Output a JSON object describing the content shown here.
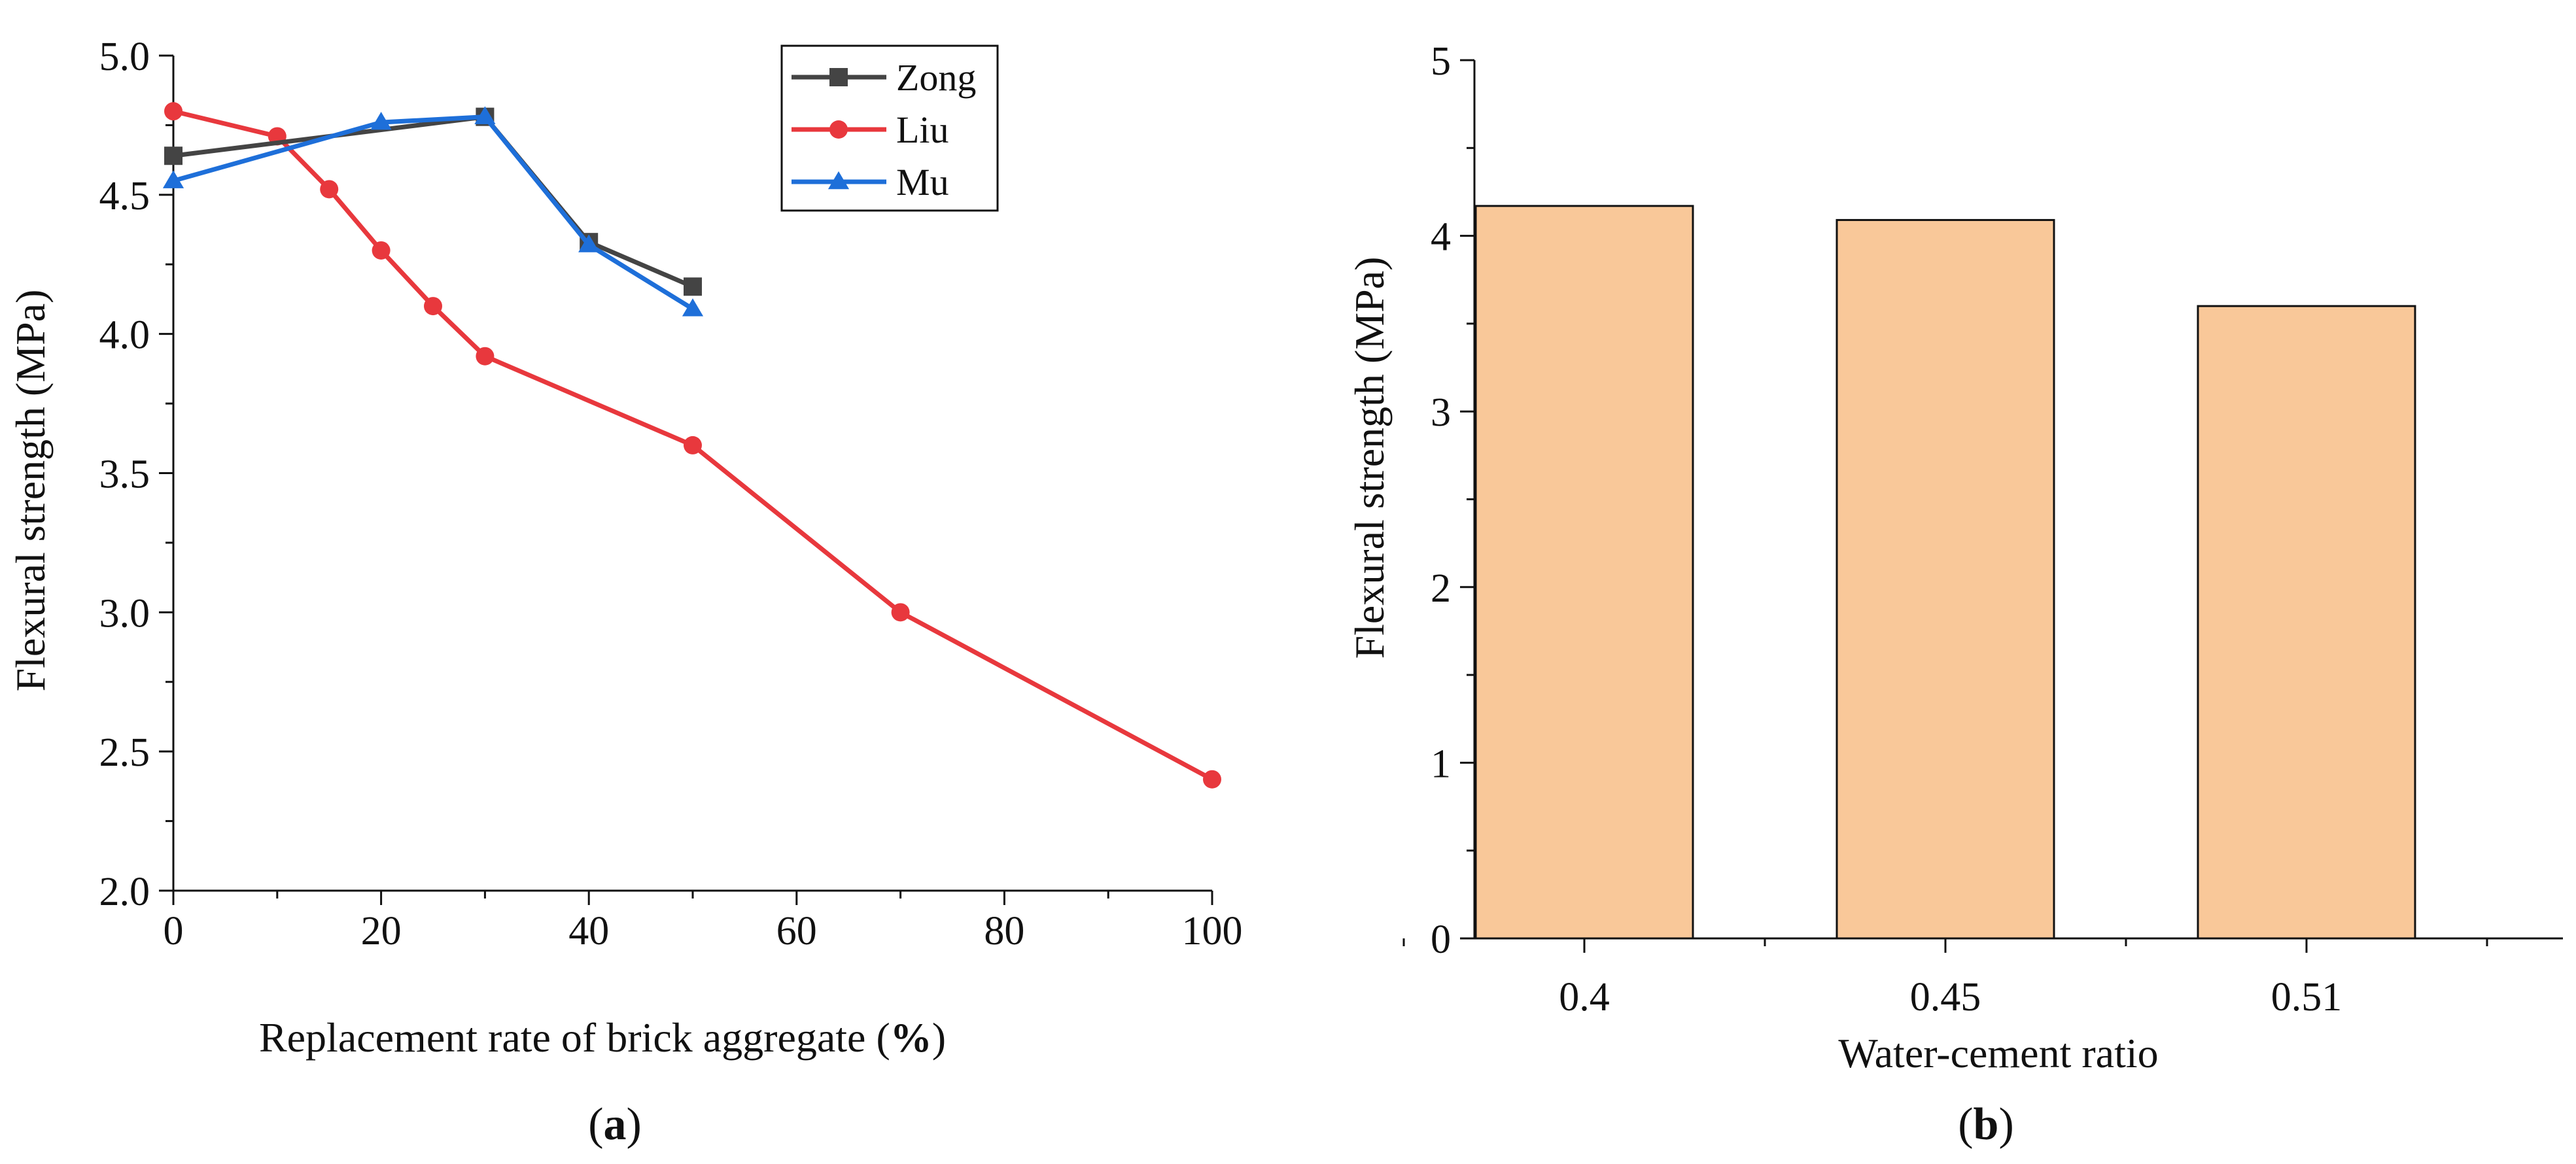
{
  "chart_data": [
    {
      "type": "line",
      "panel_label": "a",
      "xlabel_text": "Replacement rate of brick aggregate (",
      "xlabel_unit": "%",
      "xlabel_close": ")",
      "ylabel": "Flexural strength (MPa)",
      "xlim": [
        0,
        100
      ],
      "ylim": [
        2.0,
        5.0
      ],
      "xticks": [
        0,
        20,
        40,
        60,
        80,
        100
      ],
      "xtick_labels": [
        "0",
        "20",
        "40",
        "60",
        "80",
        "100"
      ],
      "yticks": [
        2.0,
        2.5,
        3.0,
        3.5,
        4.0,
        4.5,
        5.0
      ],
      "ytick_labels": [
        "2.0",
        "2.5",
        "3.0",
        "3.5",
        "4.0",
        "4.5",
        "5.0"
      ],
      "legend_position": "top-right",
      "series": [
        {
          "name": "Zong",
          "marker": "square",
          "color": "#444444",
          "x": [
            0,
            30,
            40,
            50
          ],
          "y": [
            4.64,
            4.78,
            4.33,
            4.17
          ]
        },
        {
          "name": "Liu",
          "marker": "circle",
          "color": "#E8383D",
          "x": [
            0,
            10,
            15,
            20,
            25,
            30,
            50,
            70,
            100
          ],
          "y": [
            4.8,
            4.71,
            4.52,
            4.3,
            4.1,
            3.92,
            3.6,
            3.0,
            2.4
          ]
        },
        {
          "name": "Mu",
          "marker": "triangle",
          "color": "#1E6FD9",
          "x": [
            0,
            20,
            30,
            40,
            50
          ],
          "y": [
            4.55,
            4.76,
            4.78,
            4.32,
            4.09
          ]
        }
      ]
    },
    {
      "type": "bar",
      "panel_label": "b",
      "xlabel": "Water-cement ratio",
      "ylabel": "Flexural strength (MPa)",
      "categories": [
        "0.4",
        "0.45",
        "0.51"
      ],
      "values": [
        4.17,
        4.09,
        3.6
      ],
      "ylim": [
        0,
        5
      ],
      "yticks": [
        0,
        1,
        2,
        3,
        4,
        5
      ],
      "ytick_labels": [
        "0",
        "1",
        "2",
        "3",
        "4",
        "5"
      ],
      "bar_color": "#F9C899"
    }
  ]
}
